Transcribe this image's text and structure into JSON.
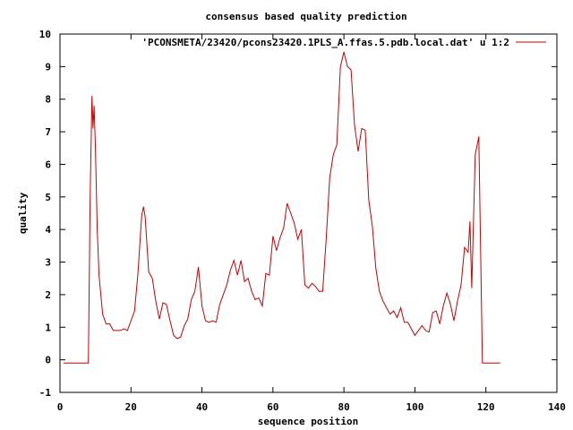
{
  "chart_data": {
    "type": "line",
    "title": "consensus based quality prediction",
    "xlabel": "sequence position",
    "ylabel": "quality",
    "xlim": [
      0,
      140
    ],
    "ylim": [
      -1,
      10
    ],
    "x_ticks": [
      0,
      20,
      40,
      60,
      80,
      100,
      120,
      140
    ],
    "y_ticks": [
      -1,
      0,
      1,
      2,
      3,
      4,
      5,
      6,
      7,
      8,
      9,
      10
    ],
    "grid": false,
    "legend_position": "top-right",
    "series": [
      {
        "name": "'PCONSMETA/23420/pcons23420.1PLS_A.ffas.5.pdb.local.dat' u 1:2",
        "color": "#cc0000",
        "x": [
          1,
          2,
          3,
          4,
          5,
          6,
          7,
          8,
          8.5,
          9,
          9.3,
          9.6,
          10,
          10.5,
          11,
          12,
          13,
          14,
          15,
          16,
          17,
          18,
          19,
          20,
          21,
          22,
          23,
          23.5,
          24,
          25,
          26,
          27,
          28,
          29,
          30,
          31,
          32,
          33,
          34,
          35,
          36,
          37,
          38,
          39,
          40,
          41,
          42,
          43,
          44,
          45,
          46,
          47,
          48,
          49,
          50,
          51,
          52,
          53,
          54,
          55,
          56,
          57,
          58,
          59,
          60,
          61,
          62,
          63,
          64,
          65,
          66,
          67,
          68,
          69,
          70,
          71,
          72,
          73,
          74,
          75,
          76,
          77,
          78,
          79,
          80,
          81,
          82,
          83,
          84,
          85,
          86,
          87,
          88,
          89,
          90,
          91,
          92,
          93,
          94,
          95,
          96,
          97,
          98,
          99,
          100,
          101,
          102,
          103,
          104,
          105,
          106,
          107,
          108,
          109,
          110,
          111,
          112,
          113,
          114,
          115,
          115.5,
          116,
          117,
          118,
          119,
          120,
          121,
          122,
          123,
          124
        ],
        "y": [
          -0.1,
          -0.1,
          -0.1,
          -0.1,
          -0.1,
          -0.1,
          -0.1,
          -0.1,
          5.0,
          8.1,
          7.1,
          7.8,
          6.5,
          4.0,
          2.6,
          1.4,
          1.1,
          1.1,
          0.9,
          0.9,
          0.9,
          0.95,
          0.9,
          1.2,
          1.5,
          2.7,
          4.4,
          4.7,
          4.4,
          2.7,
          2.5,
          1.8,
          1.25,
          1.75,
          1.7,
          1.2,
          0.75,
          0.65,
          0.7,
          1.05,
          1.25,
          1.85,
          2.1,
          2.85,
          1.65,
          1.2,
          1.15,
          1.2,
          1.15,
          1.7,
          2.0,
          2.3,
          2.75,
          3.05,
          2.6,
          3.05,
          2.4,
          2.5,
          2.1,
          1.85,
          1.9,
          1.65,
          2.65,
          2.6,
          3.8,
          3.35,
          3.75,
          4.05,
          4.8,
          4.5,
          4.2,
          3.7,
          4.0,
          2.3,
          2.2,
          2.35,
          2.25,
          2.1,
          2.1,
          3.7,
          5.6,
          6.3,
          6.6,
          9.0,
          9.45,
          9.0,
          8.9,
          7.2,
          6.4,
          7.1,
          7.05,
          4.9,
          4.1,
          2.8,
          2.1,
          1.8,
          1.6,
          1.4,
          1.5,
          1.3,
          1.6,
          1.15,
          1.15,
          0.95,
          0.75,
          0.9,
          1.05,
          0.9,
          0.85,
          1.45,
          1.5,
          1.1,
          1.65,
          2.05,
          1.7,
          1.2,
          1.8,
          2.3,
          3.45,
          3.3,
          4.25,
          2.2,
          6.3,
          6.85,
          -0.1,
          -0.1,
          -0.1,
          -0.1,
          -0.1,
          -0.1
        ]
      }
    ]
  }
}
